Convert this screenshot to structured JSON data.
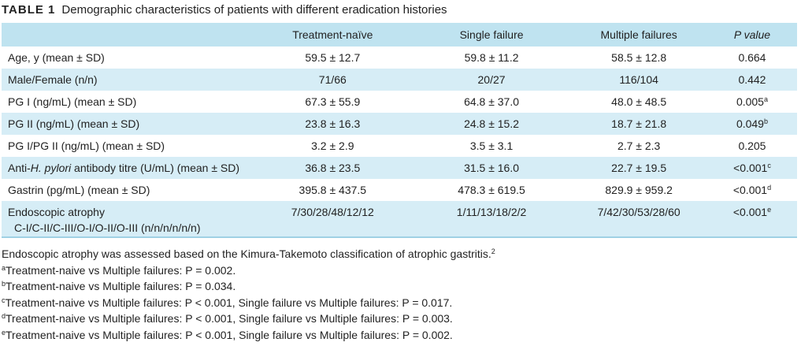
{
  "caption": {
    "label": "TABLE 1",
    "text": "Demographic characteristics of patients with different eradication histories"
  },
  "headers": [
    "",
    "Treatment-naïve",
    "Single failure",
    "Multiple failures",
    "P value"
  ],
  "rows": [
    {
      "label": "Age, y (mean ± SD)",
      "v1": "59.5 ± 12.7",
      "v2": "59.8 ± 11.2",
      "v3": "58.5 ± 12.8",
      "p": "0.664",
      "p_sup": ""
    },
    {
      "label": "Male/Female (n/n)",
      "v1": "71/66",
      "v2": "20/27",
      "v3": "116/104",
      "p": "0.442",
      "p_sup": ""
    },
    {
      "label": "PG I (ng/mL) (mean ± SD)",
      "v1": "67.3 ± 55.9",
      "v2": "64.8 ± 37.0",
      "v3": "48.0 ± 48.5",
      "p": "0.005",
      "p_sup": "a"
    },
    {
      "label": "PG II (ng/mL) (mean ± SD)",
      "v1": "23.8 ± 16.3",
      "v2": "24.8 ± 15.2",
      "v3": "18.7 ± 21.8",
      "p": "0.049",
      "p_sup": "b"
    },
    {
      "label": "PG I/PG II (ng/mL) (mean ± SD)",
      "v1": "3.2 ± 2.9",
      "v2": "3.5 ± 3.1",
      "v3": "2.7 ± 2.3",
      "p": "0.205",
      "p_sup": ""
    },
    {
      "label_pre": "Anti-",
      "label_italic": "H. pylori",
      "label_post": " antibody titre (U/mL) (mean ± SD)",
      "v1": "36.8 ± 23.5",
      "v2": "31.5 ± 16.0",
      "v3": "22.7 ± 19.5",
      "p": "<0.001",
      "p_sup": "c"
    },
    {
      "label": "Gastrin (pg/mL) (mean ± SD)",
      "v1": "395.8 ± 437.5",
      "v2": "478.3 ± 619.5",
      "v3": "829.9 ± 959.2",
      "p": "<0.001",
      "p_sup": "d"
    },
    {
      "label": "Endoscopic atrophy",
      "label_line2": "C-I/C-II/C-III/O-I/O-II/O-III (n/n/n/n/n/n)",
      "v1": "7/30/28/48/12/12",
      "v2": "1/11/13/18/2/2",
      "v3": "7/42/30/53/28/60",
      "p": "<0.001",
      "p_sup": "e"
    }
  ],
  "notes": {
    "main": "Endoscopic atrophy was assessed based on the Kimura-Takemoto classification of atrophic gastritis.",
    "main_sup": "2",
    "a": {
      "mark": "a",
      "text": "Treatment-naive vs Multiple failures: P = 0.002."
    },
    "b": {
      "mark": "b",
      "text": "Treatment-naive vs Multiple failures: P = 0.034."
    },
    "c": {
      "mark": "c",
      "text": "Treatment-naive vs Multiple failures: P < 0.001, Single failure vs Multiple failures: P = 0.017."
    },
    "d": {
      "mark": "d",
      "text": "Treatment-naive vs Multiple failures: P < 0.001, Single failure vs Multiple failures: P = 0.003."
    },
    "e": {
      "mark": "e",
      "text": "Treatment-naive vs Multiple failures: P < 0.001, Single failure vs Multiple failures: P = 0.002."
    }
  }
}
